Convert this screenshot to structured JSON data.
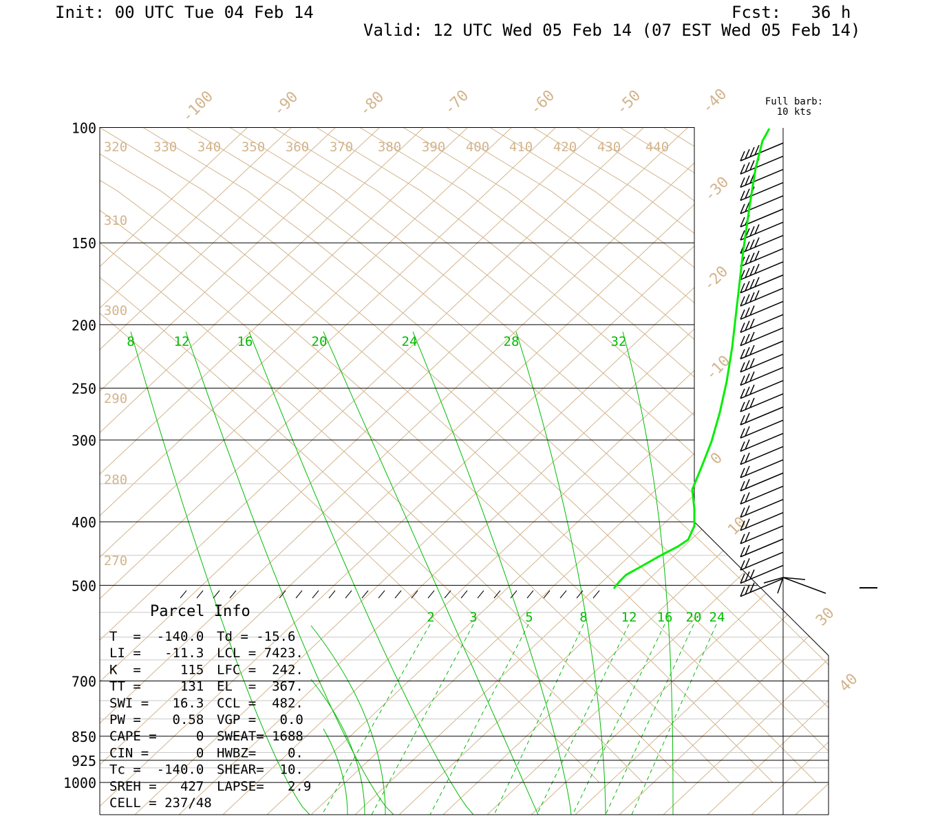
{
  "header": {
    "init": "Init: 00 UTC Tue 04 Feb 14",
    "fcst": "Fcst:   36 h",
    "valid": "Valid: 12 UTC Wed 05 Feb 14 (07 EST Wed 05 Feb 14)"
  },
  "barb_legend": {
    "line1": "Full barb:",
    "line2": "10 kts"
  },
  "colors": {
    "isotherm": "#d2b48c",
    "mixing": "#00bb00",
    "profile": "#00ee00",
    "isobar": "#000000",
    "minor_isobar": "#c8c8c8"
  },
  "chart_data": {
    "type": "skew-t",
    "y_scale": "log-pressure",
    "ylim": [
      1000,
      100
    ],
    "pressure_labels": [
      "100",
      "150",
      "200",
      "250",
      "300",
      "400",
      "500",
      "700",
      "850",
      "925",
      "1000"
    ],
    "pressure_values": [
      100,
      150,
      200,
      250,
      300,
      400,
      500,
      700,
      850,
      925,
      1000
    ],
    "isotherm_labels": [
      "-100",
      "-90",
      "-80",
      "-70",
      "-60",
      "-50",
      "-40",
      "-30",
      "-20",
      "-10",
      "0",
      "10",
      "30",
      "40"
    ],
    "theta_labels_top": [
      "320",
      "330",
      "340",
      "350",
      "360",
      "370",
      "380",
      "390",
      "400",
      "410",
      "420",
      "430",
      "440"
    ],
    "theta_labels_left": [
      "310",
      "300",
      "290",
      "280",
      "270"
    ],
    "moist_adiabat_labels": [
      "8",
      "12",
      "16",
      "20",
      "24",
      "28",
      "32"
    ],
    "mixing_ratio_labels": [
      "2",
      "3",
      "5",
      "8",
      "12",
      "16",
      "20",
      "24"
    ],
    "profile_name": "temperature",
    "barbs_kts": [
      40,
      40,
      30,
      30,
      20,
      20,
      40,
      40,
      40,
      40,
      40,
      40,
      30,
      30,
      30,
      30,
      30,
      30,
      30,
      30,
      20,
      20,
      20,
      20,
      20,
      20,
      20,
      20,
      20,
      20,
      20,
      20,
      30,
      30
    ]
  },
  "parcel": {
    "title": "Parcel Info",
    "rows": [
      [
        "T  =  -140.0",
        "Td = -15.6"
      ],
      [
        "LI =   -11.3",
        "LCL = 7423."
      ],
      [
        "K  =     115",
        "LFC =  242."
      ],
      [
        "TT =     131",
        "EL  =  367."
      ],
      [
        "SWI =   16.3",
        "CCL =  482."
      ],
      [
        "PW =    0.58",
        "VGP =   0.0"
      ],
      [
        "CAPE =     0",
        "SWEAT= 1688"
      ],
      [
        "CIN =      0",
        "HWBZ=    0."
      ],
      [
        "Tc =  -140.0",
        "SHEAR=  10."
      ],
      [
        "SREH =   427",
        "LAPSE=   2.9"
      ],
      [
        "CELL = 237/48",
        ""
      ]
    ]
  }
}
